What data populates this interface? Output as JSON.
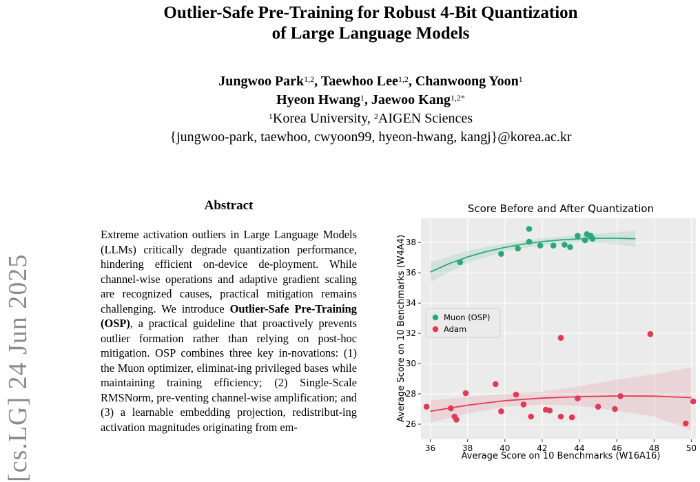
{
  "arxiv_id": "[cs.LG]  24 Jun 2025",
  "title": {
    "line1": "Outlier-Safe Pre-Training for Robust 4-Bit Quantization",
    "line2": "of Large Language Models"
  },
  "authors": {
    "a1_name": "Jungwoo Park",
    "a1_sup": "1,2",
    "a2_name": "Taewhoo Lee",
    "a2_sup": "1,2",
    "a3_name": "Chanwoong Yoon",
    "a3_sup": "1",
    "a4_name": "Hyeon Hwang",
    "a4_sup": "1",
    "a5_name": "Jaewoo Kang",
    "a5_sup": "1,2",
    "a5_mark": "*",
    "aff1_sup": "1",
    "aff1": "Korea University,",
    "aff2_sup": "2",
    "aff2": "AIGEN Sciences",
    "emails": "{jungwoo-park, taewhoo, cwyoon99, hyeon-hwang, kangj}@korea.ac.kr"
  },
  "abstract": {
    "heading": "Abstract",
    "p1": "Extreme activation outliers in Large Language Models (LLMs) critically degrade quantization performance, hindering efficient on-device de-ployment. While channel-wise operations and adaptive gradient scaling are recognized causes, practical mitigation remains challenging. We introduce ",
    "bold": "Outlier-Safe Pre-Training (OSP)",
    "p2": ", a practical guideline that proactively prevents outlier formation rather than relying on post-hoc mitigation. OSP combines three key in-novations: (1) the Muon optimizer, eliminat-ing privileged bases while maintaining training efficiency; (2) Single-Scale RMSNorm, pre-venting channel-wise amplification; and (3) a learnable embedding projection, redistribut-ing activation magnitudes originating from em-"
  },
  "chart_data": {
    "type": "scatter",
    "title": "Score Before and After Quantization",
    "xlabel": "Average Score on 10 Benchmarks (W16A16)",
    "ylabel": "Average Score on 10 Benchmarks (W4A4)",
    "xlim": [
      35.5,
      50.5
    ],
    "ylim": [
      25,
      39.6
    ],
    "xticks": [
      36,
      38,
      40,
      42,
      44,
      46,
      48,
      50
    ],
    "yticks": [
      26,
      28,
      30,
      32,
      34,
      36,
      38
    ],
    "grid": true,
    "legend_position": "center-left",
    "series": [
      {
        "name": "Muon (OSP)",
        "color": "#2aa87a",
        "points": [
          [
            37.6,
            36.7
          ],
          [
            39.8,
            37.25
          ],
          [
            40.7,
            37.6
          ],
          [
            41.3,
            38.05
          ],
          [
            41.3,
            38.9
          ],
          [
            41.9,
            37.8
          ],
          [
            42.6,
            37.8
          ],
          [
            43.2,
            37.85
          ],
          [
            43.5,
            37.7
          ],
          [
            43.9,
            38.45
          ],
          [
            44.3,
            38.15
          ],
          [
            44.4,
            38.55
          ],
          [
            44.6,
            38.45
          ],
          [
            44.7,
            38.25
          ]
        ],
        "trend": [
          [
            36,
            36.05
          ],
          [
            37,
            36.6
          ],
          [
            38,
            37.05
          ],
          [
            39,
            37.4
          ],
          [
            40,
            37.68
          ],
          [
            41,
            37.9
          ],
          [
            42,
            38.06
          ],
          [
            43,
            38.17
          ],
          [
            44,
            38.24
          ],
          [
            45,
            38.28
          ],
          [
            46,
            38.28
          ],
          [
            47,
            38.25
          ]
        ],
        "ci_upper": [
          [
            36,
            36.7
          ],
          [
            38,
            37.45
          ],
          [
            40,
            37.95
          ],
          [
            42,
            38.28
          ],
          [
            44,
            38.5
          ],
          [
            45,
            38.6
          ],
          [
            46,
            38.68
          ],
          [
            47,
            38.8
          ]
        ],
        "ci_lower": [
          [
            47,
            37.7
          ],
          [
            46,
            37.88
          ],
          [
            45,
            37.98
          ],
          [
            44,
            37.99
          ],
          [
            42,
            37.84
          ],
          [
            40,
            37.41
          ],
          [
            38,
            36.65
          ],
          [
            36,
            35.4
          ]
        ]
      },
      {
        "name": "Adam",
        "color": "#e23a55",
        "points": [
          [
            35.8,
            27.15
          ],
          [
            37.1,
            27.05
          ],
          [
            37.3,
            26.5
          ],
          [
            37.4,
            26.3
          ],
          [
            37.9,
            28.05
          ],
          [
            39.5,
            28.65
          ],
          [
            39.8,
            26.85
          ],
          [
            40.6,
            27.95
          ],
          [
            41.0,
            27.3
          ],
          [
            41.4,
            26.5
          ],
          [
            42.2,
            26.95
          ],
          [
            42.4,
            26.9
          ],
          [
            43.0,
            31.7
          ],
          [
            43.0,
            26.5
          ],
          [
            43.6,
            26.45
          ],
          [
            43.9,
            27.7
          ],
          [
            45.0,
            27.15
          ],
          [
            45.9,
            27.0
          ],
          [
            46.2,
            27.85
          ],
          [
            47.8,
            31.95
          ],
          [
            49.7,
            26.05
          ],
          [
            50.1,
            27.5
          ]
        ],
        "trend": [
          [
            36,
            26.85
          ],
          [
            38,
            27.25
          ],
          [
            40,
            27.55
          ],
          [
            42,
            27.72
          ],
          [
            44,
            27.82
          ],
          [
            46,
            27.86
          ],
          [
            48,
            27.85
          ],
          [
            50,
            27.75
          ]
        ],
        "ci_upper": [
          [
            36,
            27.55
          ],
          [
            38,
            27.8
          ],
          [
            40,
            28.0
          ],
          [
            42,
            28.15
          ],
          [
            44,
            28.5
          ],
          [
            46,
            28.95
          ],
          [
            48,
            29.3
          ],
          [
            50,
            29.75
          ]
        ],
        "ci_lower": [
          [
            50,
            25.6
          ],
          [
            48,
            26.5
          ],
          [
            46,
            26.9
          ],
          [
            44,
            27.2
          ],
          [
            42,
            27.3
          ],
          [
            40,
            27.15
          ],
          [
            38,
            26.7
          ],
          [
            36,
            26.1
          ]
        ]
      }
    ]
  }
}
